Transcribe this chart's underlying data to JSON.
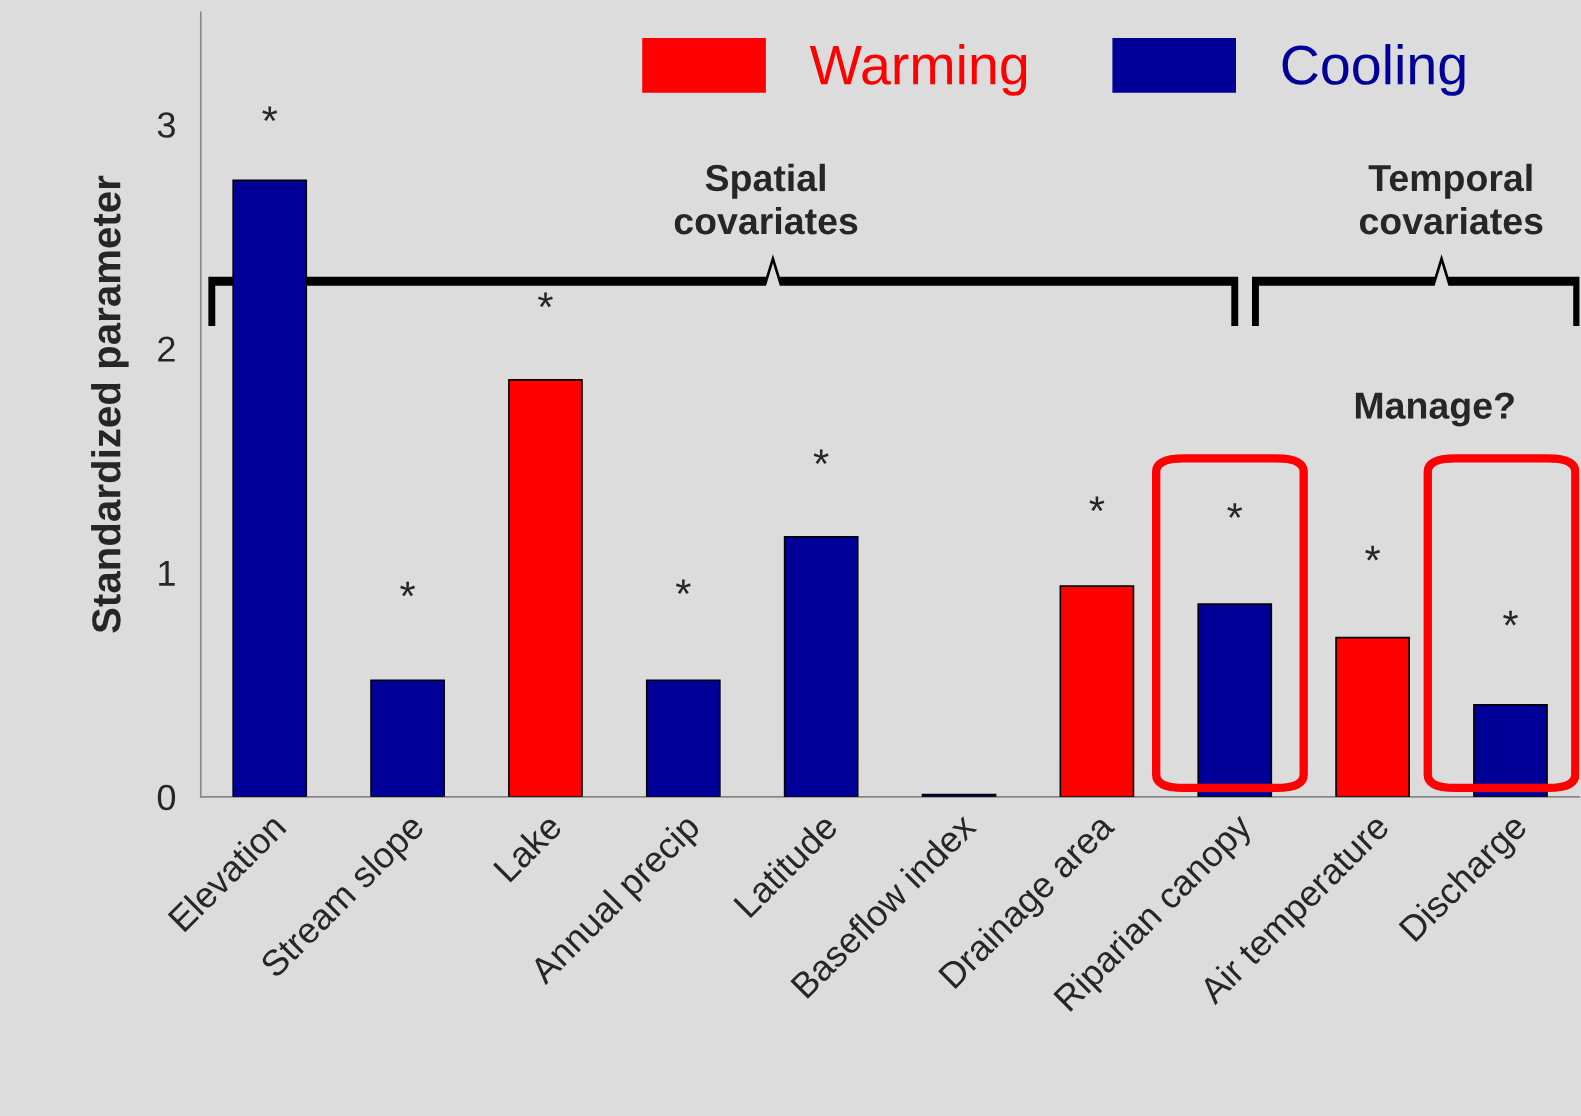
{
  "chart_data": {
    "type": "bar",
    "ylabel": "Standardized parameter",
    "categories": [
      "Elevation",
      "Stream slope",
      "Lake",
      "Annual precip",
      "Latitude",
      "Baseflow index",
      "Drainage area",
      "Riparian canopy",
      "Air temperature",
      "Discharge"
    ],
    "series": [
      {
        "name": "Warming",
        "color": "#ff0000",
        "values": [
          null,
          null,
          1.86,
          null,
          null,
          null,
          0.94,
          null,
          0.71,
          null
        ]
      },
      {
        "name": "Cooling",
        "color": "#000099",
        "values": [
          2.75,
          0.52,
          null,
          0.52,
          1.16,
          0.01,
          null,
          0.86,
          null,
          0.41
        ]
      }
    ],
    "ylim": [
      0,
      3.5
    ],
    "yticks": [
      0,
      1,
      2,
      3
    ],
    "grid": false,
    "legend": "top",
    "annotations": [
      "*",
      "*",
      "*",
      "*",
      "*",
      "*",
      "*",
      "*",
      "*",
      "Spatial\ncovariates",
      "Temporal\ncovariates",
      "Manage?"
    ]
  }
}
